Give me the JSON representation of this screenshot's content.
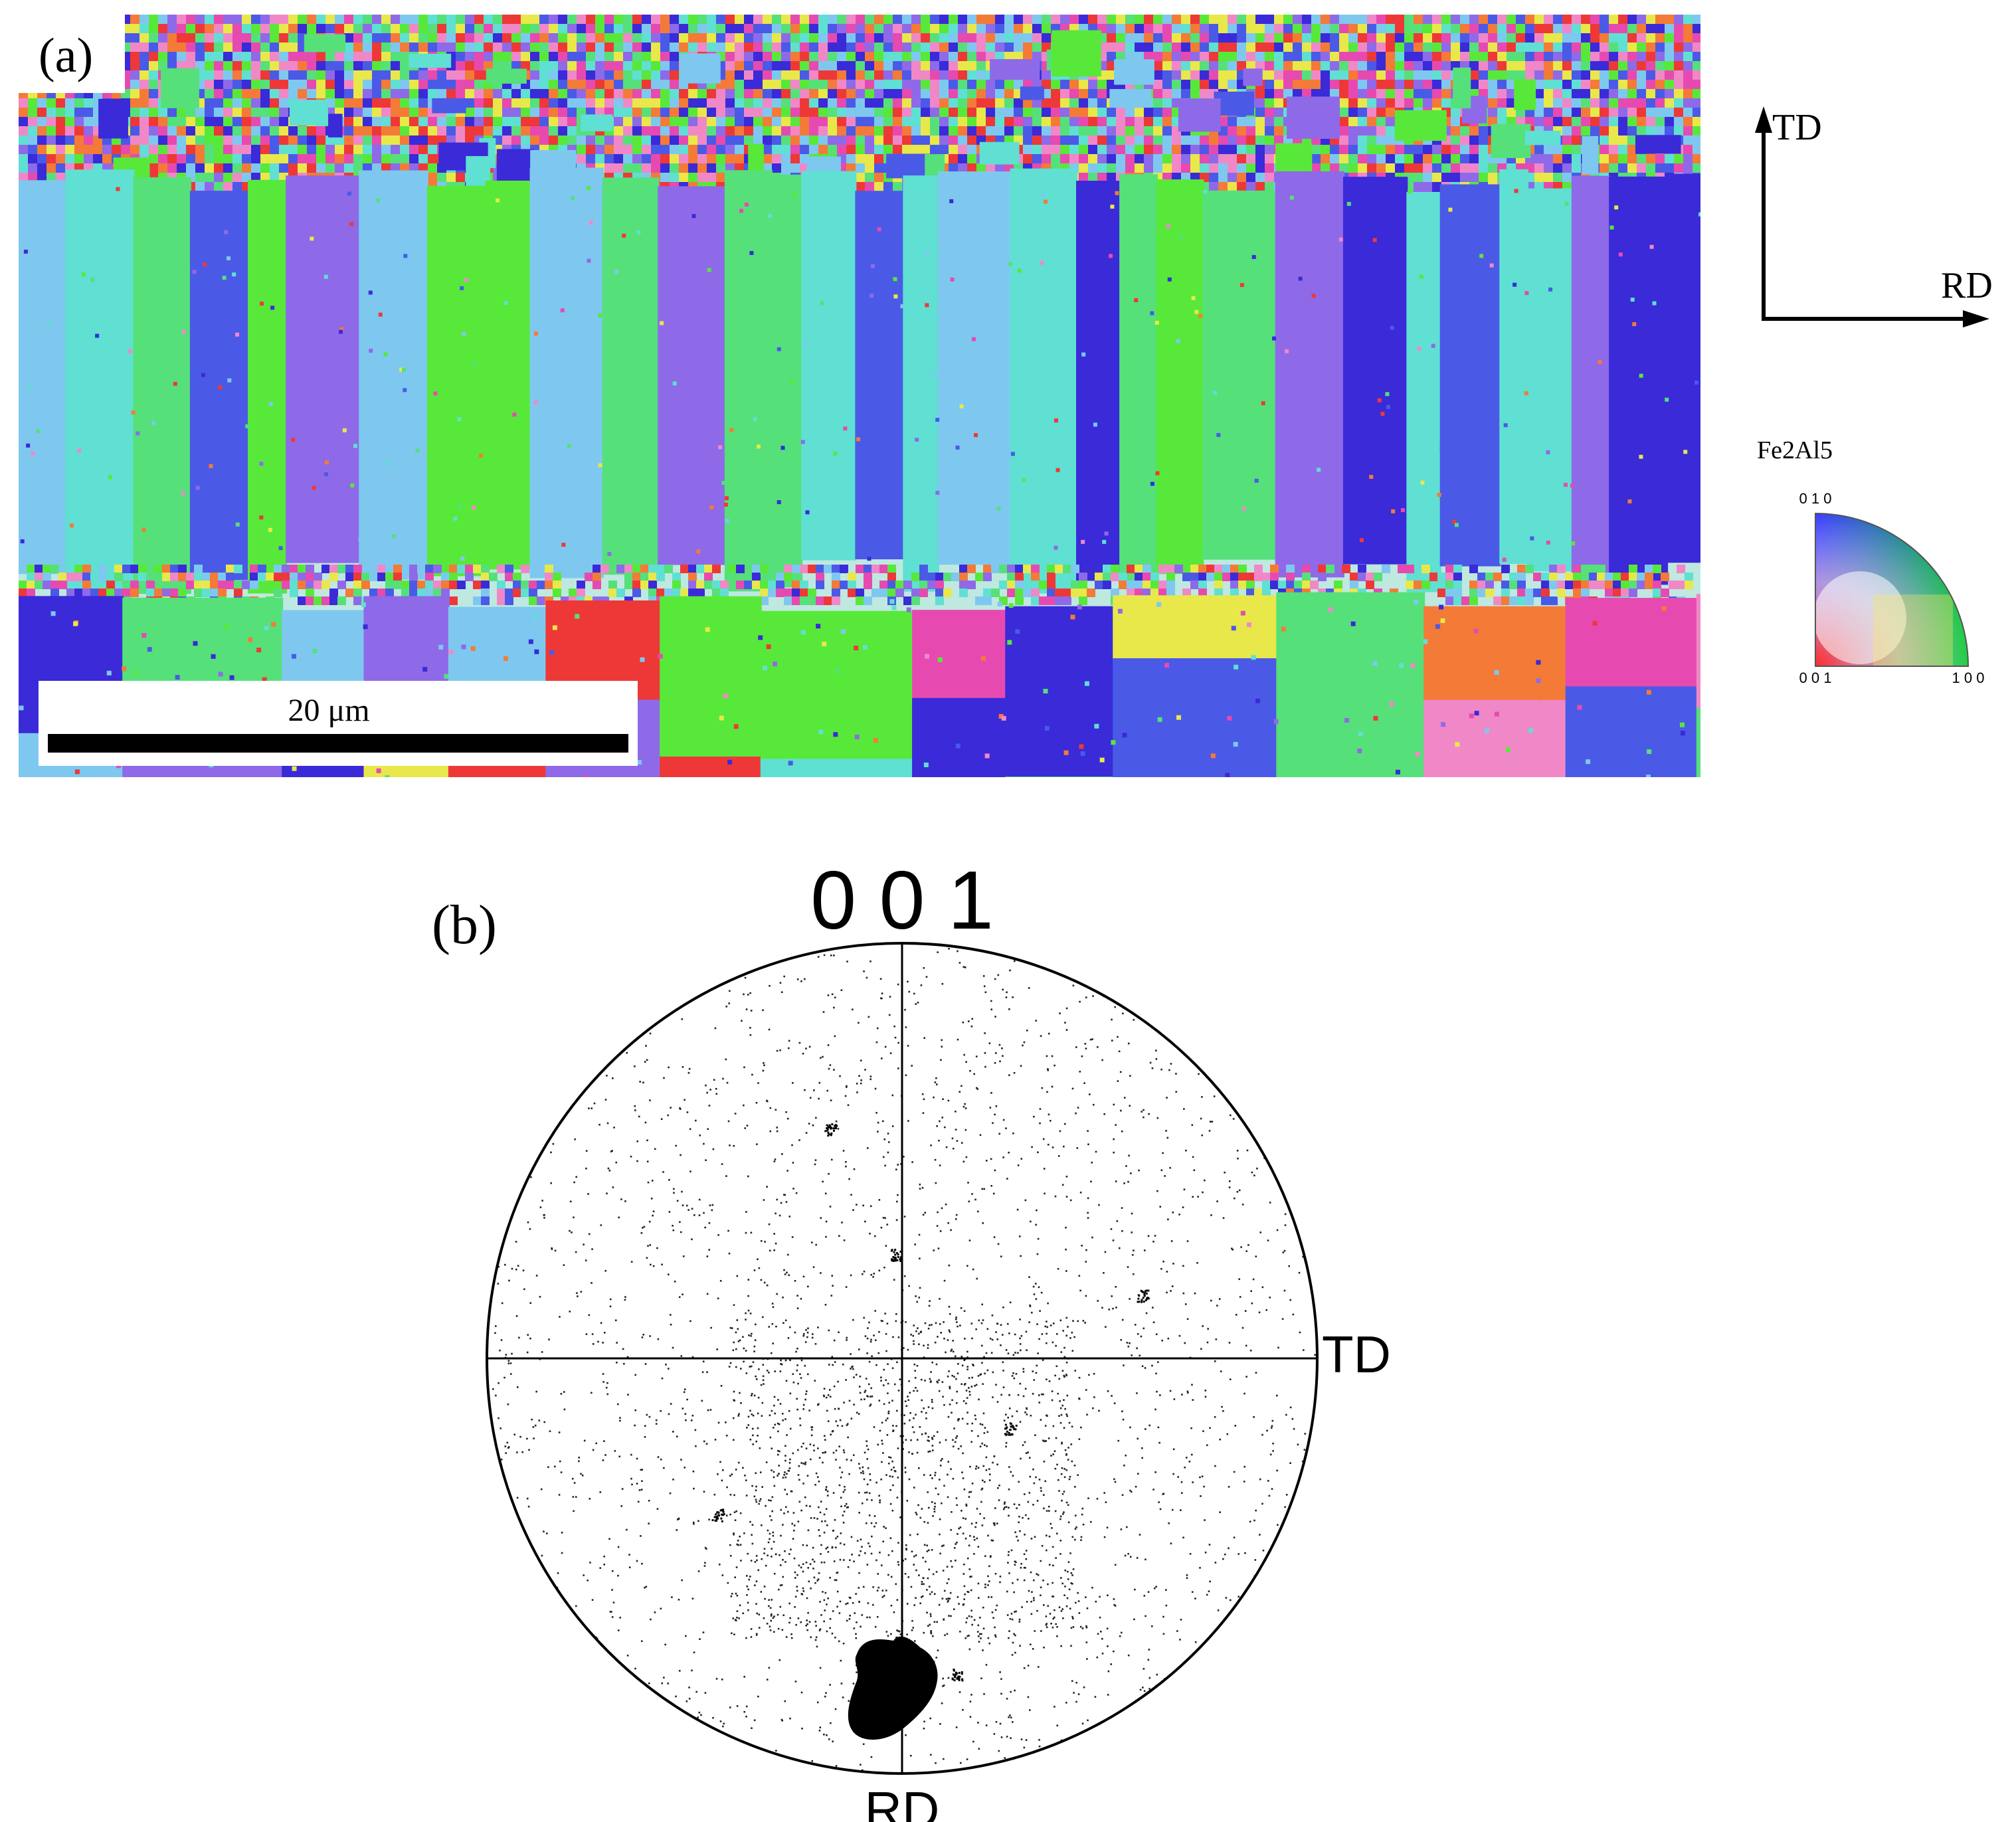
{
  "panel_a": {
    "label": "(a)",
    "scale_bar_label": "20 μm",
    "axes": {
      "vertical_label": "TD",
      "horizontal_label": "RD"
    },
    "legend": {
      "phase": "Fe2Al5",
      "corner_top": "0 1 0",
      "corner_bottom_left": "0 0 1",
      "corner_bottom_right": "1 0 0"
    },
    "colors": {
      "green": "#55e07a",
      "light_blue": "#7ec8f0",
      "cyan": "#5fe0d2",
      "blue": "#4a5ae6",
      "deep_blue": "#3a2ad8",
      "lime": "#58e83a",
      "purple": "#8e6ae8",
      "red": "#ee3838",
      "orange": "#f47a38",
      "pink": "#f088c8",
      "yellow": "#e8e84a",
      "magenta": "#e64ab0"
    }
  },
  "panel_b": {
    "label": "(b)",
    "pole_figure_title": "0 0 1",
    "direction_right": "TD",
    "direction_bottom": "RD"
  }
}
